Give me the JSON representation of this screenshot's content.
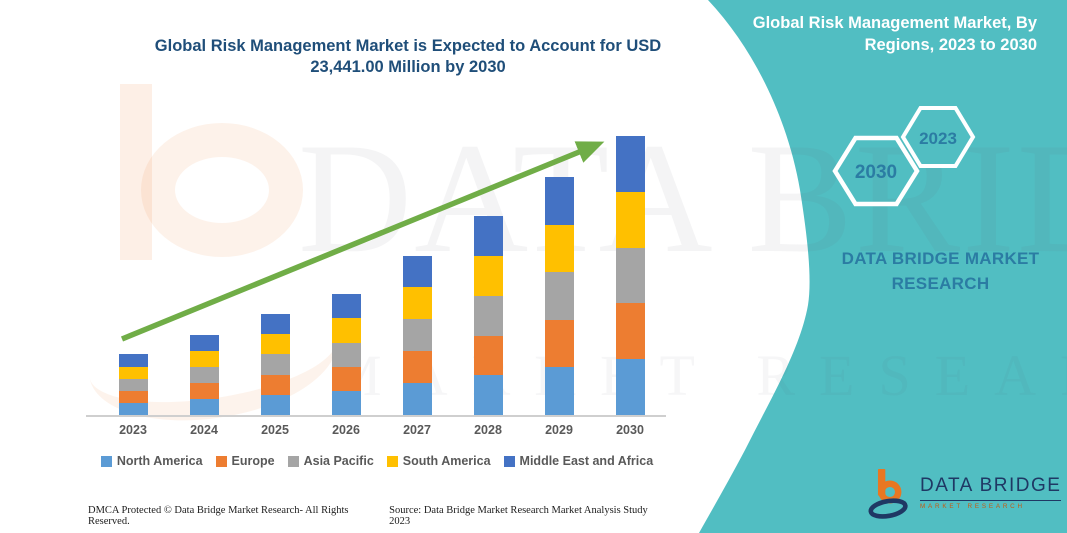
{
  "title": {
    "line1": "Global Risk Management Market is Expected to Account for USD",
    "line2": "23,441.00 Million by 2030"
  },
  "panel": {
    "heading_line1": "Global Risk Management Market, By",
    "heading_line2": "Regions, 2023 to 2030",
    "hexagon_left_year": "2030",
    "hexagon_right_year": "2023",
    "brand_line1": "DATA BRIDGE MARKET",
    "brand_line2": "RESEARCH",
    "panel_color": "#51BEC2",
    "text_color": "#2B7CA3"
  },
  "logo": {
    "name_text": "DATA BRIDGE",
    "sub_text": "MARKET RESEARCH",
    "icon_orange": "#E87722",
    "icon_navy": "#1F3864"
  },
  "watermark": {
    "text1": "DATA BRIDGE",
    "text2": "MARKET RESEARCH"
  },
  "footer": {
    "left": "DMCA Protected © Data Bridge Market Research-  All Rights Reserved.",
    "right": "Source: Data Bridge Market Research  Market Analysis Study 2023"
  },
  "chart_data": {
    "type": "bar",
    "stacked": true,
    "title": "Global Risk Management Market is Expected to Account for USD 23,441.00 Million by 2030",
    "unit": "USD Million",
    "categories": [
      "2023",
      "2024",
      "2025",
      "2026",
      "2027",
      "2028",
      "2029",
      "2030"
    ],
    "series": [
      {
        "name": "North America",
        "color": "#5B9BD5",
        "values": [
          1020,
          1345,
          1695,
          2030,
          2680,
          3340,
          4000,
          4688
        ]
      },
      {
        "name": "Europe",
        "color": "#ED7D31",
        "values": [
          1020,
          1345,
          1695,
          2030,
          2680,
          3340,
          4000,
          4688
        ]
      },
      {
        "name": "Asia Pacific",
        "color": "#A5A5A5",
        "values": [
          1020,
          1345,
          1695,
          2030,
          2680,
          3340,
          4000,
          4688
        ]
      },
      {
        "name": "South America",
        "color": "#FFC000",
        "values": [
          1020,
          1345,
          1695,
          2030,
          2680,
          3340,
          4000,
          4688
        ]
      },
      {
        "name": "Middle East and Africa",
        "color": "#4472C4",
        "values": [
          1020,
          1345,
          1695,
          2030,
          2680,
          3340,
          4000,
          4688
        ]
      }
    ],
    "totals_estimated": [
      5100,
      6725,
      8475,
      10150,
      13400,
      16700,
      20000,
      23441
    ],
    "ylim": [
      0,
      24000
    ],
    "y_axis_visible": false,
    "gridlines": false,
    "legend_position": "bottom",
    "trend_arrow": true,
    "trend_arrow_color": "#70AD47"
  }
}
